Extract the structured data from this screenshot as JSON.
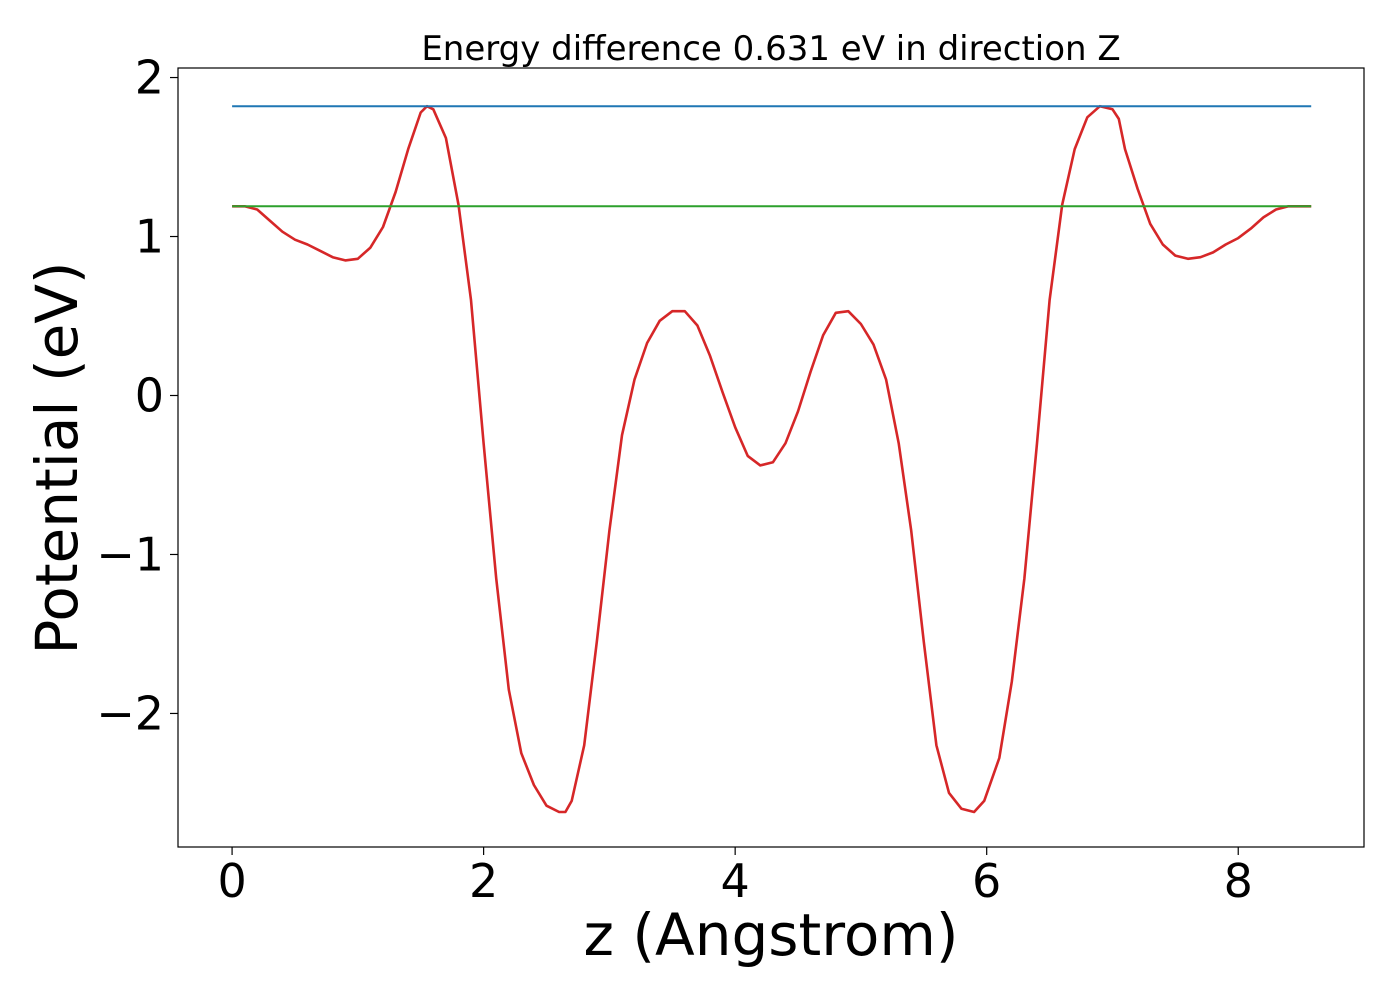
{
  "chart_data": {
    "type": "line",
    "title": "Energy difference 0.631 eV in direction Z",
    "xlabel": "z (Angstrom)",
    "ylabel": "Potential (eV)",
    "xlim": [
      -0.43,
      9.0
    ],
    "ylim": [
      -2.84,
      2.06
    ],
    "xticks": [
      0,
      2,
      4,
      6,
      8
    ],
    "xtick_labels": [
      "0",
      "2",
      "4",
      "6",
      "8"
    ],
    "yticks": [
      -2,
      -1,
      0,
      1,
      2
    ],
    "ytick_labels": [
      "−2",
      "−1",
      "0",
      "1",
      "2"
    ],
    "grid": false,
    "legend": "none",
    "series": [
      {
        "color": "#d62728",
        "x": [
          0,
          0.1,
          0.2,
          0.3,
          0.4,
          0.5,
          0.6,
          0.7,
          0.8,
          0.9,
          1.0,
          1.1,
          1.2,
          1.3,
          1.4,
          1.5,
          1.55,
          1.6,
          1.7,
          1.8,
          1.9,
          2.0,
          2.1,
          2.2,
          2.3,
          2.4,
          2.5,
          2.6,
          2.65,
          2.7,
          2.8,
          2.9,
          3.0,
          3.1,
          3.2,
          3.3,
          3.4,
          3.5,
          3.6,
          3.7,
          3.8,
          3.9,
          4.0,
          4.1,
          4.2,
          4.3,
          4.4,
          4.5,
          4.6,
          4.7,
          4.8,
          4.9,
          5.0,
          5.1,
          5.2,
          5.3,
          5.4,
          5.5,
          5.6,
          5.7,
          5.8,
          5.9,
          5.98,
          6.1,
          6.2,
          6.3,
          6.4,
          6.5,
          6.6,
          6.7,
          6.8,
          6.9,
          7.0,
          7.05,
          7.1,
          7.2,
          7.3,
          7.4,
          7.5,
          7.6,
          7.7,
          7.8,
          7.9,
          8.0,
          8.1,
          8.2,
          8.3,
          8.4,
          8.5,
          8.58
        ],
        "y": [
          1.19,
          1.19,
          1.17,
          1.1,
          1.03,
          0.98,
          0.95,
          0.91,
          0.87,
          0.85,
          0.86,
          0.93,
          1.06,
          1.28,
          1.55,
          1.78,
          1.82,
          1.8,
          1.62,
          1.2,
          0.6,
          -0.3,
          -1.15,
          -1.85,
          -2.25,
          -2.45,
          -2.58,
          -2.62,
          -2.62,
          -2.55,
          -2.2,
          -1.55,
          -0.85,
          -0.25,
          0.1,
          0.33,
          0.47,
          0.53,
          0.53,
          0.44,
          0.25,
          0.02,
          -0.2,
          -0.38,
          -0.44,
          -0.42,
          -0.3,
          -0.1,
          0.15,
          0.38,
          0.52,
          0.53,
          0.45,
          0.32,
          0.1,
          -0.3,
          -0.85,
          -1.55,
          -2.2,
          -2.5,
          -2.6,
          -2.62,
          -2.55,
          -2.28,
          -1.8,
          -1.15,
          -0.3,
          0.6,
          1.2,
          1.55,
          1.75,
          1.82,
          1.8,
          1.74,
          1.55,
          1.3,
          1.08,
          0.95,
          0.88,
          0.86,
          0.87,
          0.9,
          0.95,
          0.99,
          1.05,
          1.12,
          1.17,
          1.19,
          1.19,
          1.19
        ]
      },
      {
        "color": "#1f77b4",
        "x": [
          0,
          8.58
        ],
        "y": [
          1.82,
          1.82
        ]
      },
      {
        "color": "#2ca02c",
        "x": [
          0,
          8.58
        ],
        "y": [
          1.19,
          1.19
        ]
      }
    ]
  }
}
